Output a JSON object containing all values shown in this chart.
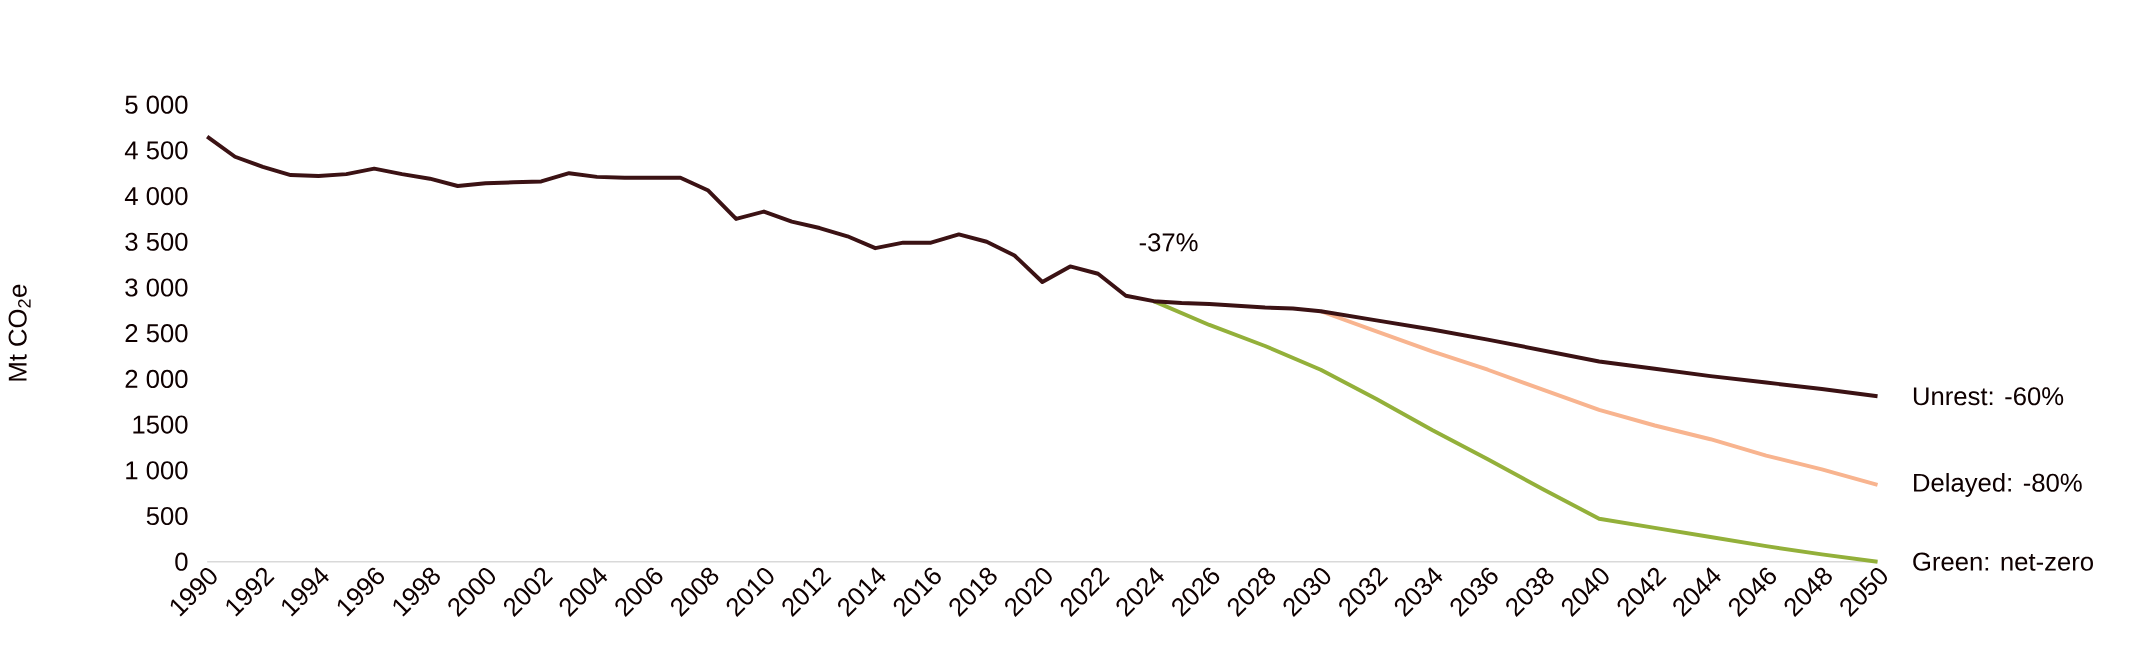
{
  "chart_data": {
    "type": "line",
    "ylabel": "Mt CO$_{2}$e",
    "xlim": [
      1990,
      2050
    ],
    "xticks": [
      1990,
      1992,
      1994,
      1996,
      1998,
      2000,
      2002,
      2004,
      2006,
      2008,
      2010,
      2012,
      2014,
      2016,
      2018,
      2020,
      2022,
      2024,
      2026,
      2028,
      2030,
      2032,
      2034,
      2036,
      2038,
      2040,
      2042,
      2044,
      2046,
      2048,
      2050
    ],
    "ylim": [
      0,
      5000
    ],
    "yticks": [
      0,
      500,
      {
        "value": 1000,
        "label": "1 000"
      },
      1500,
      {
        "value": 2000,
        "label": "2 000"
      },
      {
        "value": 2500,
        "label": "2 500"
      },
      {
        "value": 3000,
        "label": "3 000"
      },
      {
        "value": 3500,
        "label": "3 500"
      },
      {
        "value": 4000,
        "label": "4 000"
      },
      {
        "value": 4500,
        "label": "4 500"
      },
      {
        "value": 5000,
        "label": "5 000"
      }
    ],
    "grid": false,
    "legend": false,
    "marker": "none",
    "line_style": "solid",
    "annotations": [
      {
        "text": "-37%",
        "x": 2023,
        "y": 2910
      }
    ],
    "series": [
      {
        "name": "Delayed: -80%",
        "color": "#f8b48f",
        "x": [
          2030,
          2032,
          2034,
          2036,
          2038,
          2040,
          2042,
          2044,
          2046,
          2048,
          2050
        ],
        "values": [
          2740,
          2520,
          2300,
          2100,
          1880,
          1660,
          1490,
          1340,
          1160,
          1010,
          840
        ]
      },
      {
        "name": "Green: net-zero",
        "color": "#93b03a",
        "x": [
          2024,
          2026,
          2028,
          2030,
          2032,
          2034,
          2036,
          2038,
          2040,
          2042,
          2044,
          2046,
          2048,
          2050
        ],
        "values": [
          2850,
          2590,
          2360,
          2100,
          1780,
          1440,
          1120,
          790,
          470,
          370,
          270,
          170,
          80,
          0
        ]
      },
      {
        "name": "Unrest: -60%",
        "color": "#3b1214",
        "x": [
          1990,
          1991,
          1992,
          1993,
          1994,
          1995,
          1996,
          1997,
          1998,
          1999,
          2000,
          2001,
          2002,
          2003,
          2004,
          2005,
          2006,
          2007,
          2008,
          2009,
          2010,
          2011,
          2012,
          2013,
          2014,
          2015,
          2016,
          2017,
          2018,
          2019,
          2020,
          2021,
          2022,
          2023,
          2024,
          2025,
          2026,
          2027,
          2028,
          2029,
          2030,
          2032,
          2034,
          2036,
          2038,
          2040,
          2042,
          2044,
          2046,
          2048,
          2050
        ],
        "values": [
          4650,
          4430,
          4320,
          4230,
          4220,
          4240,
          4300,
          4240,
          4190,
          4110,
          4140,
          4150,
          4160,
          4250,
          4210,
          4200,
          4200,
          4200,
          4060,
          3750,
          3830,
          3720,
          3650,
          3560,
          3430,
          3490,
          3490,
          3580,
          3500,
          3350,
          3060,
          3230,
          3150,
          2910,
          2850,
          2830,
          2820,
          2800,
          2780,
          2770,
          2740,
          2640,
          2540,
          2430,
          2310,
          2190,
          2110,
          2030,
          1960,
          1890,
          1810
        ]
      }
    ]
  }
}
